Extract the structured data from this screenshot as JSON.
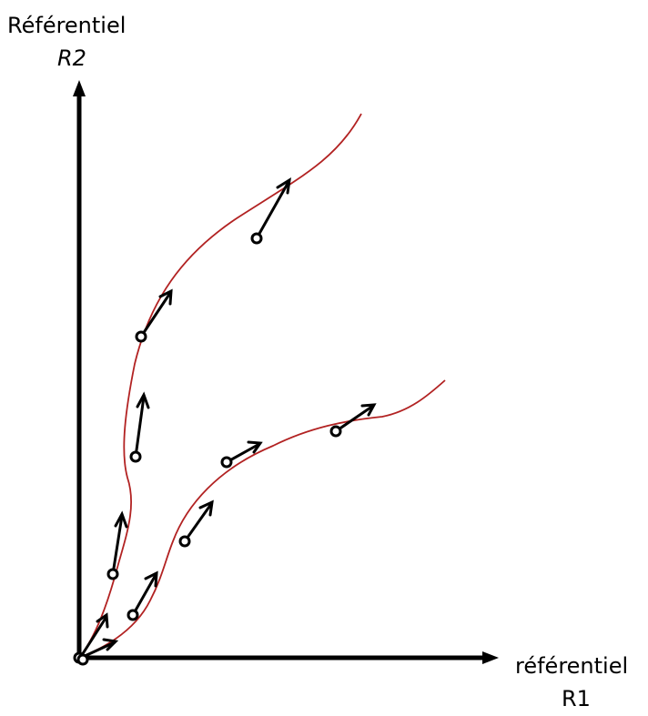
{
  "axes": {
    "y_title": "Référentiel",
    "y_sub": "R2",
    "x_title": "référentiel",
    "x_sub": "R1"
  },
  "colors": {
    "curve": "#b22222",
    "axis": "#000000",
    "arrow": "#000000",
    "particle_fill": "#ffffff"
  },
  "icons": {
    "particle": "hollow-circle",
    "velocity": "arrow"
  }
}
